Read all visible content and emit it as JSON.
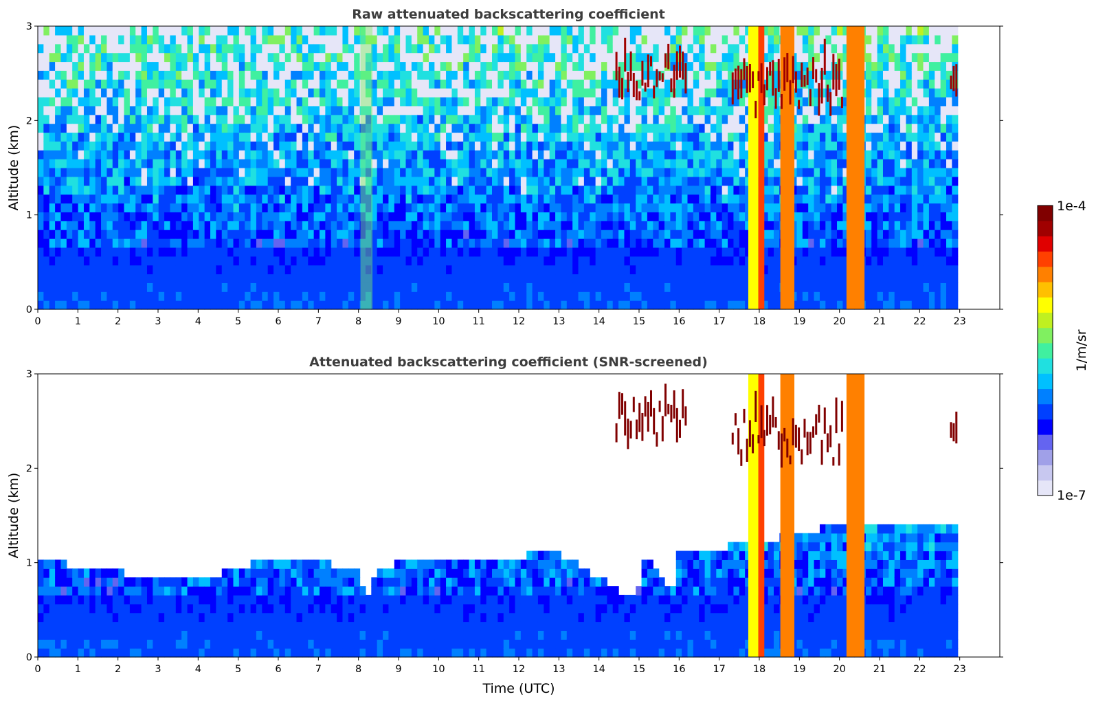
{
  "chart_data": [
    {
      "type": "heatmap",
      "title": "Raw attenuated backscattering coefficient",
      "xlabel": "",
      "ylabel": "Altitude (km)",
      "xlim": [
        0,
        24
      ],
      "ylim": [
        0,
        3
      ],
      "x_ticks": [
        "0",
        "1",
        "2",
        "3",
        "4",
        "5",
        "6",
        "7",
        "8",
        "9",
        "10",
        "11",
        "12",
        "13",
        "14",
        "15",
        "16",
        "17",
        "18",
        "19",
        "20",
        "21",
        "22",
        "23"
      ],
      "y_ticks": [
        "0",
        "1",
        "2",
        "3"
      ],
      "data_extent_hours": [
        0,
        22.95
      ],
      "screening": "none",
      "features": [
        {
          "kind": "boundary_layer",
          "x_range": [
            0,
            22.95
          ],
          "top_km": 0.7,
          "level": 0.28
        },
        {
          "kind": "noise_field",
          "x_range": [
            0,
            22.95
          ],
          "y_range": [
            0.7,
            3
          ]
        },
        {
          "kind": "faint_column",
          "x": 8.2,
          "width_h": 0.3,
          "level": 0.55
        },
        {
          "kind": "cloud_column",
          "x": 17.85,
          "width_h": 0.25,
          "level": 0.65
        },
        {
          "kind": "cloud_column",
          "x": 18.05,
          "width_h": 0.15,
          "level": 0.85
        },
        {
          "kind": "cloud_column",
          "x": 18.7,
          "width_h": 0.35,
          "level": 0.78
        },
        {
          "kind": "cloud_column",
          "x": 20.4,
          "width_h": 0.45,
          "level": 0.78
        },
        {
          "kind": "elevated_layer",
          "x_range": [
            14.4,
            16.2
          ],
          "y_range": [
            2.2,
            3.0
          ],
          "level": 0.95
        },
        {
          "kind": "elevated_layer",
          "x_range": [
            17.3,
            20.1
          ],
          "y_range": [
            2.0,
            3.0
          ],
          "level": 0.95
        },
        {
          "kind": "elevated_layer",
          "x_range": [
            22.75,
            22.95
          ],
          "y_range": [
            2.25,
            2.42
          ],
          "level": 0.97
        }
      ]
    },
    {
      "type": "heatmap",
      "title": "Attenuated backscattering coefficient (SNR-screened)",
      "xlabel": "Time (UTC)",
      "ylabel": "Altitude (km)",
      "xlim": [
        0,
        24
      ],
      "ylim": [
        0,
        3
      ],
      "x_ticks": [
        "0",
        "1",
        "2",
        "3",
        "4",
        "5",
        "6",
        "7",
        "8",
        "9",
        "10",
        "11",
        "12",
        "13",
        "14",
        "15",
        "16",
        "17",
        "18",
        "19",
        "20",
        "21",
        "22",
        "23"
      ],
      "y_ticks": [
        "0",
        "1",
        "2",
        "3"
      ],
      "data_extent_hours": [
        0,
        22.95
      ],
      "screening": "SNR",
      "screen_top_km": [
        [
          0,
          1.05
        ],
        [
          1,
          0.95
        ],
        [
          2,
          0.9
        ],
        [
          3,
          0.85
        ],
        [
          4,
          0.8
        ],
        [
          5,
          0.95
        ],
        [
          6,
          1.05
        ],
        [
          7,
          1.0
        ],
        [
          8,
          0.95
        ],
        [
          8.2,
          0.65
        ],
        [
          8.5,
          0.95
        ],
        [
          9,
          1.0
        ],
        [
          11,
          1.05
        ],
        [
          13,
          1.1
        ],
        [
          14.9,
          0.6
        ],
        [
          15.2,
          1.1
        ],
        [
          15.8,
          0.65
        ],
        [
          16,
          1.1
        ],
        [
          17,
          1.15
        ],
        [
          19.5,
          1.35
        ],
        [
          20,
          1.45
        ],
        [
          21,
          1.4
        ],
        [
          22,
          1.4
        ],
        [
          22.95,
          1.4
        ]
      ],
      "features": [
        {
          "kind": "boundary_layer",
          "x_range": [
            0,
            22.95
          ],
          "top_km": 0.7,
          "level": 0.28
        },
        {
          "kind": "cloud_column",
          "x": 17.85,
          "width_h": 0.25,
          "level": 0.65
        },
        {
          "kind": "cloud_column",
          "x": 18.05,
          "width_h": 0.15,
          "level": 0.85
        },
        {
          "kind": "cloud_column",
          "x": 18.7,
          "width_h": 0.35,
          "level": 0.78
        },
        {
          "kind": "cloud_column",
          "x": 20.4,
          "width_h": 0.45,
          "level": 0.78
        },
        {
          "kind": "elevated_layer",
          "x_range": [
            14.4,
            16.2
          ],
          "y_range": [
            2.2,
            3.0
          ],
          "level": 0.98
        },
        {
          "kind": "elevated_layer",
          "x_range": [
            17.3,
            20.1
          ],
          "y_range": [
            2.0,
            3.0
          ],
          "level": 0.98
        },
        {
          "kind": "elevated_layer",
          "x_range": [
            22.75,
            22.95
          ],
          "y_range": [
            2.25,
            2.42
          ],
          "level": 0.98
        }
      ]
    }
  ],
  "colorbar": {
    "label": "1/m/sr",
    "max_label": "1e-4",
    "min_label": "1e-7",
    "scale": "log",
    "colormap": "jet",
    "colors": [
      "#e6e6f8",
      "#c8c8f0",
      "#a0a0e8",
      "#6464f0",
      "#0000ff",
      "#0040ff",
      "#0080ff",
      "#00c0ff",
      "#20e0e0",
      "#40f0a0",
      "#80f060",
      "#c0f020",
      "#ffff00",
      "#ffc000",
      "#ff8000",
      "#ff4000",
      "#e00000",
      "#a00000",
      "#800000"
    ]
  }
}
